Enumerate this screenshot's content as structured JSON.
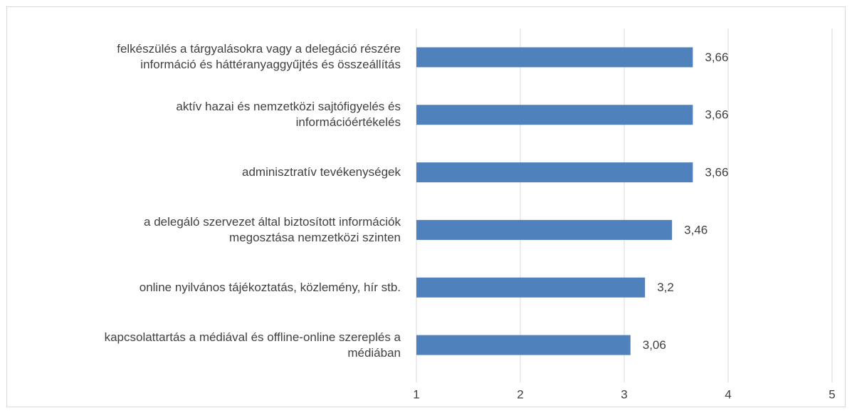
{
  "chart_data": {
    "type": "bar",
    "orientation": "horizontal",
    "categories": [
      "felkészülés a tárgyalásokra vagy a delegáció részére\ninformáció és háttéranyaggyűjtés és összeállítás",
      "aktív hazai és nemzetközi sajtófigyelés és\ninformációértékelés",
      "adminisztratív tevékenységek",
      "a delegáló szervezet által biztosított információk\nmegosztása nemzetközi szinten",
      "online nyilvános tájékoztatás, közlemény, hír stb.",
      "kapcsolattartás a médiával és offline-online szereplés a\nmédiában"
    ],
    "values": [
      3.66,
      3.66,
      3.66,
      3.46,
      3.2,
      3.06
    ],
    "value_labels": [
      "3,66",
      "3,66",
      "3,66",
      "3,46",
      "3,2",
      "3,06"
    ],
    "color": "#4f81bd",
    "xlim": [
      1,
      5
    ],
    "xticks": [
      1,
      2,
      3,
      4,
      5
    ],
    "grid": true
  }
}
